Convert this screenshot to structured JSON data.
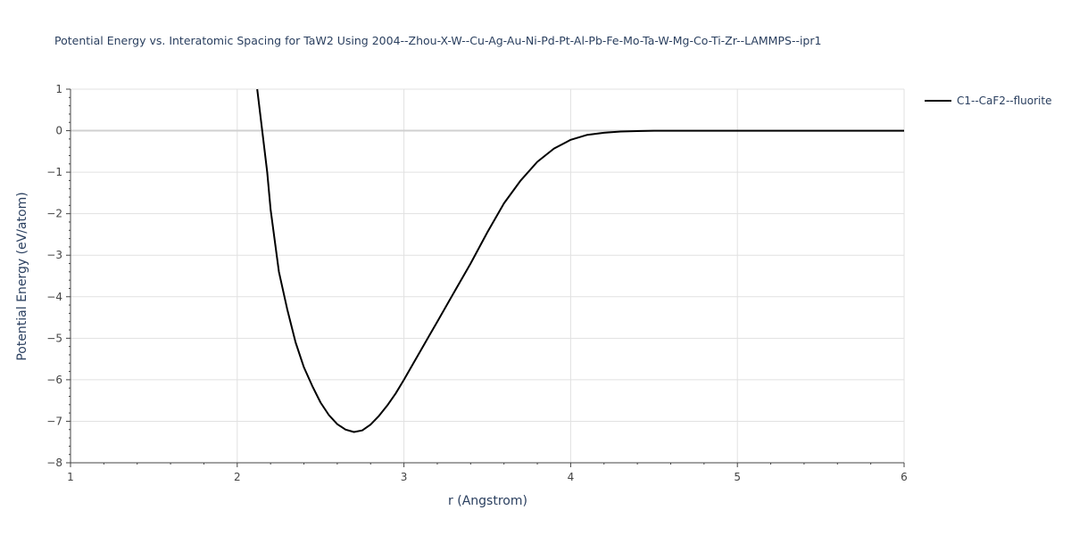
{
  "chart_data": {
    "type": "line",
    "title": "Potential Energy vs. Interatomic Spacing for TaW2 Using 2004--Zhou-X-W--Cu-Ag-Au-Ni-Pd-Pt-Al-Pb-Fe-Mo-Ta-W-Mg-Co-Ti-Zr--LAMMPS--ipr1",
    "xlabel": "r (Angstrom)",
    "ylabel": "Potential Energy (eV/atom)",
    "xlim": [
      1,
      6
    ],
    "ylim": [
      -8,
      1
    ],
    "x_ticks": [
      1,
      2,
      3,
      4,
      5,
      6
    ],
    "y_ticks": [
      1,
      0,
      -1,
      -2,
      -3,
      -4,
      -5,
      -6,
      -7,
      -8
    ],
    "grid": true,
    "legend_position": "top-right",
    "series": [
      {
        "name": "C1--CaF2--fluorite",
        "color": "#000000",
        "x": [
          2.12,
          2.15,
          2.18,
          2.2,
          2.25,
          2.3,
          2.35,
          2.4,
          2.45,
          2.5,
          2.55,
          2.6,
          2.65,
          2.7,
          2.75,
          2.8,
          2.85,
          2.9,
          2.95,
          3.0,
          3.05,
          3.1,
          3.15,
          3.2,
          3.3,
          3.4,
          3.5,
          3.6,
          3.7,
          3.8,
          3.9,
          4.0,
          4.1,
          4.2,
          4.3,
          4.4,
          4.5,
          4.7,
          5.0,
          5.5,
          6.0
        ],
        "y": [
          1.0,
          0.0,
          -1.0,
          -1.9,
          -3.4,
          -4.3,
          -5.1,
          -5.7,
          -6.15,
          -6.55,
          -6.85,
          -7.07,
          -7.2,
          -7.26,
          -7.22,
          -7.08,
          -6.87,
          -6.62,
          -6.33,
          -6.0,
          -5.65,
          -5.3,
          -4.95,
          -4.6,
          -3.9,
          -3.2,
          -2.45,
          -1.75,
          -1.2,
          -0.75,
          -0.43,
          -0.22,
          -0.1,
          -0.05,
          -0.02,
          -0.01,
          0.0,
          0.0,
          0.0,
          0.0,
          0.0
        ]
      }
    ]
  }
}
